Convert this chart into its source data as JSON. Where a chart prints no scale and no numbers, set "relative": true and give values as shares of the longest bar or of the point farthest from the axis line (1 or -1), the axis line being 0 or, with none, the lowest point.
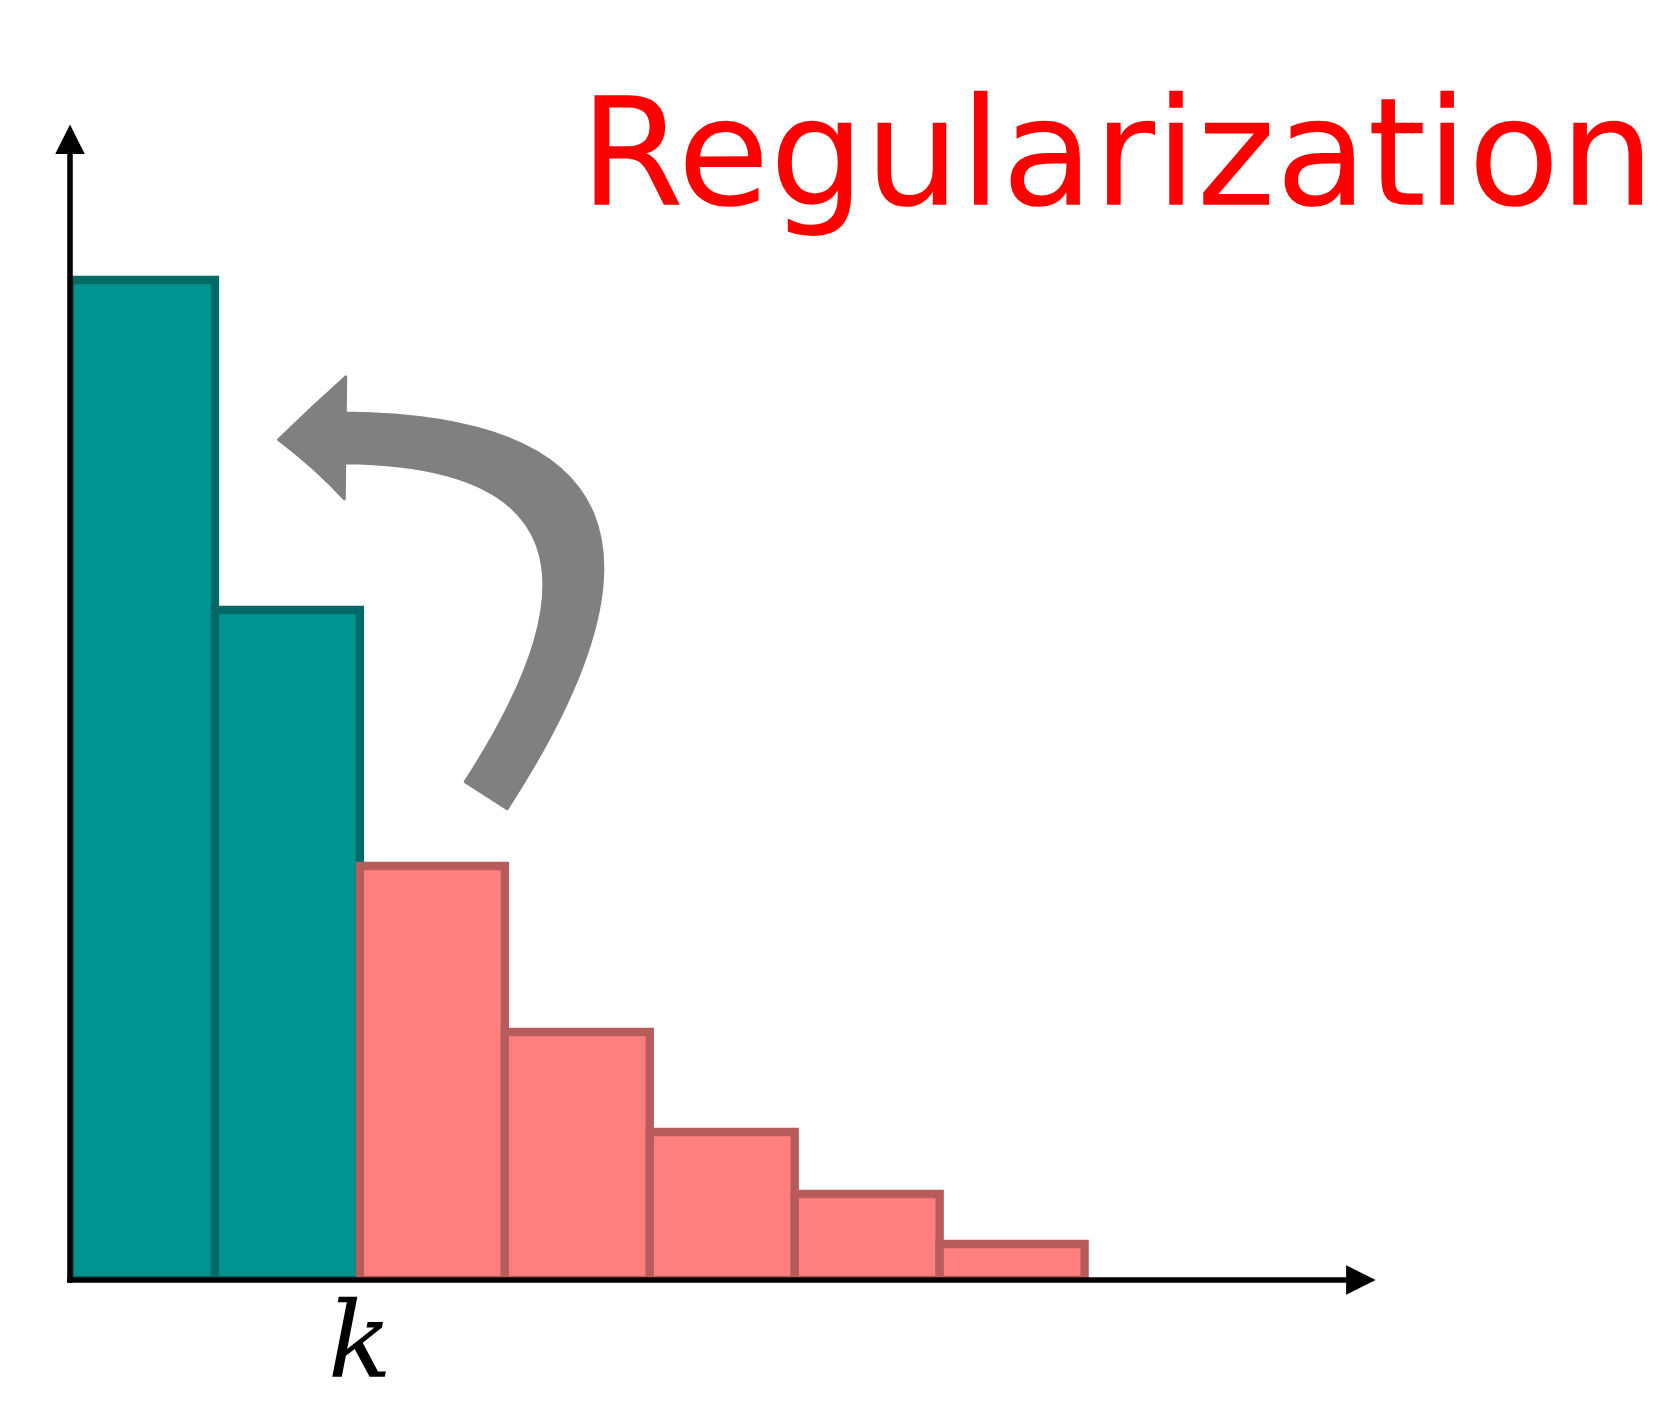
{
  "chart_data": {
    "type": "bar",
    "title": "Regularization",
    "relative": true,
    "categories": [
      null,
      "k",
      null,
      null,
      null,
      null,
      null
    ],
    "values": [
      1,
      0.67,
      0.414,
      0.248,
      0.148,
      0.086,
      0.036
    ],
    "colors": [
      "#009490",
      "#009490",
      "#ff7f7f",
      "#ff7f7f",
      "#ff7f7f",
      "#ff7f7f",
      "#ff7f7f"
    ],
    "grid": false,
    "legend": false
  }
}
